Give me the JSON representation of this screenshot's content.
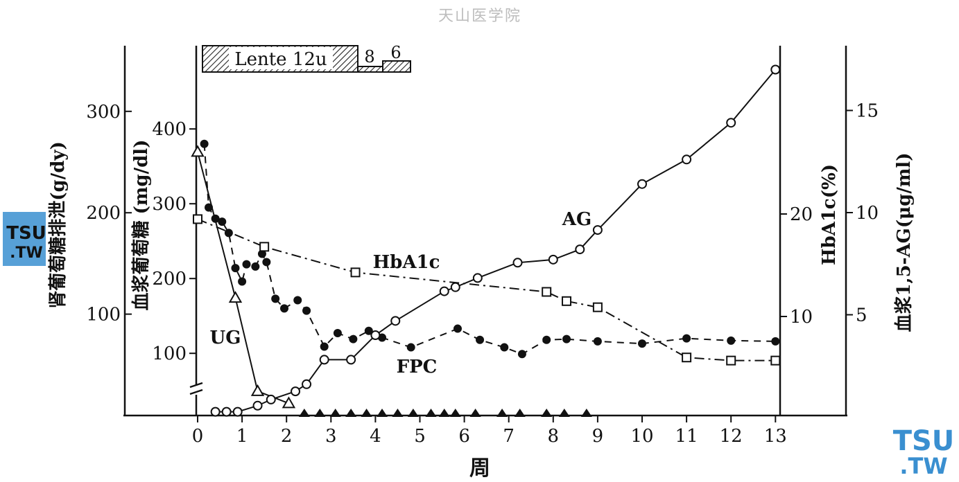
{
  "watermark": {
    "top_title": "天山医学院",
    "logo_line1": "TSU",
    "logo_line2": ".TW",
    "logo_color": "#3a8fd0",
    "logo_text_color": "#ffffff"
  },
  "chart_data": {
    "type": "line",
    "xlabel": "周",
    "x_ticks": [
      0,
      1,
      2,
      3,
      4,
      5,
      6,
      7,
      8,
      9,
      10,
      11,
      12,
      13
    ],
    "axes": {
      "ug": {
        "label": "肾葡萄糖排泄(g/dy)",
        "ticks": [
          100,
          200,
          300
        ],
        "ylim": [
          0,
          360
        ],
        "axis_break": true
      },
      "fpc": {
        "label": "血浆葡萄糖 (mg/dl)",
        "ticks": [
          100,
          200,
          300,
          400
        ],
        "ylim": [
          0,
          400
        ],
        "axis_break": true
      },
      "hba1c": {
        "label": "HbA1c(%)",
        "ticks": [
          10,
          20
        ],
        "ylim": [
          0,
          40
        ]
      },
      "ag": {
        "label": "血浆1,5-AG(μg/ml)",
        "ticks": [
          5,
          10,
          15
        ],
        "ylim": [
          0,
          20
        ]
      }
    },
    "insulin_bar": {
      "labels": [
        "Lente 12u",
        "8",
        "6"
      ]
    },
    "series": [
      {
        "name": "UG",
        "axis": "ug",
        "style": "solid",
        "marker": "triangle-open",
        "points": [
          [
            0,
            260
          ],
          [
            0.85,
            116
          ],
          [
            1.35,
            24
          ],
          [
            2.05,
            12
          ]
        ]
      },
      {
        "name": "UG-zero",
        "axis": "ug",
        "style": "none",
        "marker": "triangle-filled",
        "points": [
          [
            2.4,
            0
          ],
          [
            2.75,
            0
          ],
          [
            3.1,
            0
          ],
          [
            3.45,
            0
          ],
          [
            3.8,
            0
          ],
          [
            4.15,
            0
          ],
          [
            4.5,
            0
          ],
          [
            4.85,
            0
          ],
          [
            5.25,
            0
          ],
          [
            5.55,
            0
          ],
          [
            5.8,
            0
          ],
          [
            6.25,
            0
          ],
          [
            6.85,
            0
          ],
          [
            7.25,
            0
          ],
          [
            7.85,
            0
          ],
          [
            8.25,
            0
          ],
          [
            8.75,
            0
          ]
        ]
      },
      {
        "name": "FPC",
        "axis": "fpc",
        "style": "dashed",
        "marker": "circle-filled",
        "points": [
          [
            0.15,
            380
          ],
          [
            0.25,
            295
          ],
          [
            0.4,
            280
          ],
          [
            0.55,
            276
          ],
          [
            0.7,
            261
          ],
          [
            0.85,
            214
          ],
          [
            1.0,
            196
          ],
          [
            1.1,
            219
          ],
          [
            1.3,
            216
          ],
          [
            1.45,
            233
          ],
          [
            1.55,
            222
          ],
          [
            1.75,
            173
          ],
          [
            1.95,
            160
          ],
          [
            2.25,
            171
          ],
          [
            2.45,
            157
          ],
          [
            2.85,
            109
          ],
          [
            3.15,
            127
          ],
          [
            3.5,
            119
          ],
          [
            3.85,
            130
          ],
          [
            4.15,
            121
          ],
          [
            4.8,
            108
          ],
          [
            5.85,
            133
          ],
          [
            6.35,
            118
          ],
          [
            6.9,
            108
          ],
          [
            7.3,
            99
          ],
          [
            7.85,
            118
          ],
          [
            8.3,
            119
          ],
          [
            9.0,
            116
          ],
          [
            10.0,
            113
          ],
          [
            11.0,
            120
          ],
          [
            12.0,
            117
          ],
          [
            13.0,
            116
          ]
        ]
      },
      {
        "name": "HbA1c",
        "axis": "hba1c",
        "style": "dashdot",
        "marker": "square-open",
        "points": [
          [
            0,
            19.5
          ],
          [
            1.5,
            16.8
          ],
          [
            3.55,
            14.3
          ],
          [
            7.85,
            12.4
          ],
          [
            8.3,
            11.5
          ],
          [
            9.0,
            10.9
          ],
          [
            11.0,
            6.0
          ],
          [
            12.0,
            5.7
          ],
          [
            13.0,
            5.7
          ]
        ]
      },
      {
        "name": "AG",
        "axis": "ag",
        "style": "solid",
        "marker": "circle-open",
        "points": [
          [
            0.4,
            0.25
          ],
          [
            0.65,
            0.25
          ],
          [
            0.9,
            0.25
          ],
          [
            1.35,
            0.55
          ],
          [
            1.65,
            0.85
          ],
          [
            2.2,
            1.25
          ],
          [
            2.45,
            1.6
          ],
          [
            2.85,
            2.8
          ],
          [
            3.45,
            2.8
          ],
          [
            4.0,
            4.0
          ],
          [
            4.45,
            4.7
          ],
          [
            5.55,
            6.15
          ],
          [
            5.8,
            6.35
          ],
          [
            6.3,
            6.8
          ],
          [
            7.2,
            7.55
          ],
          [
            8.0,
            7.7
          ],
          [
            8.6,
            8.2
          ],
          [
            9.0,
            9.15
          ],
          [
            10.0,
            11.4
          ],
          [
            11.0,
            12.6
          ],
          [
            12.0,
            14.4
          ],
          [
            13.0,
            17.0
          ]
        ]
      }
    ],
    "annotations": [
      {
        "text": "AG",
        "series": "AG"
      },
      {
        "text": "HbA1c",
        "series": "HbA1c"
      },
      {
        "text": "UG",
        "series": "UG"
      },
      {
        "text": "FPC",
        "series": "FPC"
      }
    ]
  }
}
